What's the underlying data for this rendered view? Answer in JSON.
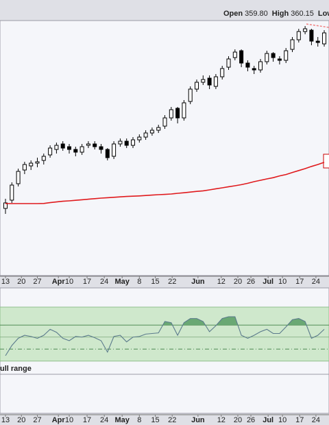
{
  "chart_data": [
    {
      "type": "candlestick",
      "ohlc_legend": [
        {
          "label": "Open",
          "value": "359.80"
        },
        {
          "label": "High",
          "value": "360.15"
        },
        {
          "label": "Low"
        }
      ],
      "x": [
        0,
        2,
        4,
        6,
        8,
        10,
        12,
        14,
        16,
        18,
        20,
        22,
        24,
        26,
        28,
        30,
        32,
        34,
        36,
        38,
        40,
        42,
        44,
        46,
        48,
        50,
        52,
        54,
        56,
        58,
        60,
        62,
        64,
        66,
        68,
        70,
        72,
        74,
        76,
        78,
        80,
        82,
        84,
        86,
        88,
        90,
        92,
        94,
        96,
        98,
        100
      ],
      "open": [
        228,
        234,
        246,
        256,
        259,
        261,
        263,
        267,
        271,
        275,
        273,
        271,
        269,
        274,
        275,
        273,
        271,
        266,
        275,
        277,
        274,
        278,
        280,
        283,
        285,
        288,
        294,
        301,
        294,
        306,
        315,
        320,
        323,
        317,
        324,
        331,
        338,
        343,
        334,
        330,
        329,
        335,
        341,
        337,
        336,
        344,
        351,
        357,
        358,
        350,
        348
      ],
      "high": [
        235,
        247,
        257,
        262,
        263,
        265,
        268,
        274,
        276,
        277,
        275,
        273,
        275,
        277,
        277,
        275,
        272,
        277,
        279,
        279,
        280,
        282,
        285,
        287,
        289,
        296,
        302,
        302,
        307,
        317,
        322,
        325,
        325,
        326,
        332,
        339,
        344,
        344,
        336,
        332,
        337,
        343,
        342,
        339,
        345,
        353,
        359,
        361,
        359,
        353,
        358
      ],
      "low": [
        224,
        232,
        244,
        253,
        256,
        258,
        260,
        265,
        268,
        270,
        268,
        266,
        267,
        272,
        271,
        268,
        263,
        264,
        273,
        272,
        272,
        276,
        278,
        281,
        283,
        286,
        292,
        290,
        292,
        304,
        313,
        318,
        315,
        315,
        322,
        329,
        336,
        331,
        328,
        326,
        327,
        333,
        335,
        333,
        334,
        342,
        349,
        355,
        347,
        346,
        346
      ],
      "close": [
        232,
        245,
        255,
        260,
        261,
        262,
        266,
        272,
        274,
        272,
        271,
        269,
        273,
        275,
        273,
        271,
        265,
        275,
        277,
        274,
        278,
        280,
        283,
        285,
        287,
        294,
        300,
        294,
        305,
        315,
        320,
        322,
        318,
        324,
        330,
        337,
        342,
        334,
        331,
        329,
        335,
        341,
        338,
        336,
        343,
        351,
        357,
        359,
        350,
        349,
        356
      ],
      "up_color": "#ffffff",
      "down_color": "#000000",
      "series": [
        {
          "color": "#e0191c",
          "values": [
            231.5,
            231.5,
            231.5,
            231.5,
            231.5,
            231.5,
            231.6,
            232.2,
            232.7,
            233.2,
            233.5,
            233.9,
            234.3,
            234.7,
            235.1,
            235.5,
            235.8,
            236.1,
            236.4,
            236.7,
            236.9,
            237.1,
            237.4,
            237.7,
            238,
            238.2,
            238.5,
            239,
            239.4,
            239.9,
            240.4,
            240.8,
            241.5,
            242.3,
            243,
            243.8,
            244.5,
            245.3,
            246.3,
            247.5,
            248.5,
            249.5,
            250.4,
            251.7,
            252.7,
            254.2,
            255.6,
            257,
            258.6,
            260,
            261.6
          ]
        }
      ],
      "xlim": [
        -1.72,
        101.5
      ],
      "ylim": [
        179,
        365
      ],
      "xticks": [
        {
          "value": 0,
          "label": "13"
        },
        {
          "value": 5,
          "label": "20"
        },
        {
          "value": 10,
          "label": "27"
        },
        {
          "value": 16.6,
          "label": "Apr"
        },
        {
          "value": 20,
          "label": "10"
        },
        {
          "value": 25.6,
          "label": "17"
        },
        {
          "value": 31,
          "label": "24"
        },
        {
          "value": 36.6,
          "label": "May"
        },
        {
          "value": 42,
          "label": "8"
        },
        {
          "value": 47,
          "label": "15"
        },
        {
          "value": 52.3,
          "label": "22"
        },
        {
          "value": 60.4,
          "label": "Jun"
        },
        {
          "value": 67.7,
          "label": "12"
        },
        {
          "value": 72.9,
          "label": "20"
        },
        {
          "value": 77,
          "label": "26"
        },
        {
          "value": 82.4,
          "label": "Jul"
        },
        {
          "value": 86.9,
          "label": "10"
        },
        {
          "value": 92.3,
          "label": "17"
        },
        {
          "value": 97.4,
          "label": "24"
        }
      ]
    },
    {
      "type": "line",
      "x": [
        0,
        2,
        4,
        6,
        8,
        10,
        12,
        14,
        16,
        18,
        20,
        22,
        24,
        26,
        28,
        30,
        32,
        34,
        36,
        38,
        40,
        42,
        44,
        46,
        48,
        50,
        52,
        54,
        56,
        58,
        60,
        62,
        64,
        66,
        68,
        70,
        72,
        74,
        76,
        78,
        80,
        82,
        84,
        86,
        88,
        90,
        92,
        94,
        96,
        98,
        100
      ],
      "series": [
        {
          "color": "#5b7a8c",
          "values": [
            19,
            36,
            48,
            53,
            51,
            48,
            53,
            63,
            58,
            48,
            44,
            51,
            50,
            53,
            49,
            44,
            25,
            51,
            53,
            42,
            50,
            51,
            55,
            56,
            57,
            76,
            74,
            53,
            74,
            81,
            81,
            76,
            59,
            69,
            81,
            84,
            84,
            53,
            48,
            53,
            59,
            63,
            56,
            56,
            67,
            79,
            81,
            76,
            48,
            53,
            63
          ]
        }
      ],
      "xlim": [
        -1.72,
        101.5
      ],
      "ylim": [
        -12,
        100
      ],
      "band": [
        10,
        100
      ],
      "band_color": "#cfe8cc",
      "fill_color": "#6aa874",
      "overbought": 70,
      "midline": 50,
      "oversold": 30,
      "annotation": "ull range"
    }
  ]
}
